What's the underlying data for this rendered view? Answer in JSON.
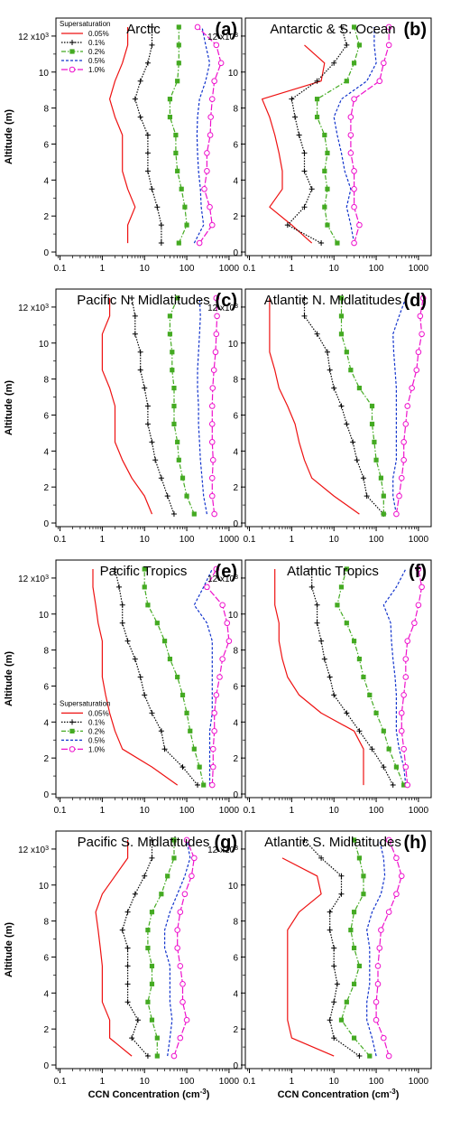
{
  "chart_data": {
    "type": "line",
    "x_axis": {
      "label": "CCN Concentration (cm",
      "label_sup": "-3",
      "label_end": ")",
      "scale": "log",
      "range": [
        0.08,
        2000
      ],
      "ticks": [
        "0.1",
        "1",
        "10",
        "100",
        "1000"
      ]
    },
    "y_axis": {
      "label": "Altitude (m)",
      "range": [
        -200,
        13000
      ],
      "ticks": [
        "0",
        "2",
        "4",
        "6",
        "8",
        "10",
        "12 x10"
      ],
      "top_tick_sup": "3"
    },
    "legend": {
      "title": "Supersaturation",
      "entries": [
        "0.05%",
        "0.1%",
        "0.2%",
        "0.5%",
        "1.0%"
      ],
      "shown_in_panels": [
        "a",
        "e"
      ],
      "placement": "top-left"
    },
    "series_style": [
      {
        "name": "0.05%",
        "color": "#ee1111",
        "dash": "solid",
        "marker": "none"
      },
      {
        "name": "0.1%",
        "color": "#000000",
        "dash": "dotted",
        "marker": "plus"
      },
      {
        "name": "0.2%",
        "color": "#44aa22",
        "dash": "dashdot",
        "marker": "square"
      },
      {
        "name": "0.5%",
        "color": "#1133cc",
        "dash": "dashed",
        "marker": "none"
      },
      {
        "name": "1.0%",
        "color": "#ee11cc",
        "dash": "longdash",
        "marker": "circle"
      }
    ],
    "altitudes": [
      500,
      1500,
      2500,
      3500,
      4500,
      5500,
      6500,
      7500,
      8500,
      9500,
      10500,
      11500,
      12500
    ],
    "panels": [
      {
        "id": "a",
        "title": "Arctic",
        "letter": "(a)",
        "series": [
          [
            4,
            4,
            6,
            4,
            3,
            3,
            3,
            2,
            1.5,
            2,
            3,
            4,
            4
          ],
          [
            25,
            25,
            20,
            15,
            12,
            12,
            12,
            8,
            6,
            8,
            12,
            15,
            15
          ],
          [
            65,
            100,
            90,
            75,
            60,
            55,
            55,
            40,
            40,
            60,
            65,
            65,
            65
          ],
          [
            150,
            250,
            220,
            210,
            190,
            180,
            175,
            180,
            200,
            280,
            350,
            280,
            230
          ],
          [
            200,
            400,
            350,
            260,
            300,
            300,
            360,
            370,
            400,
            450,
            650,
            500,
            180
          ]
        ]
      },
      {
        "id": "b",
        "title": "Antarctic & S. Ocean",
        "letter": "(b)",
        "series": [
          [
            3,
            1,
            0.3,
            0.6,
            0.6,
            0.5,
            0.4,
            0.3,
            0.2,
            5,
            6,
            2,
            null
          ],
          [
            5,
            0.8,
            2,
            3,
            2,
            2,
            1.5,
            1.2,
            1,
            4,
            10,
            20,
            15
          ],
          [
            12,
            7,
            6,
            7,
            6,
            7,
            6,
            4,
            4,
            20,
            30,
            40,
            30
          ],
          [
            30,
            25,
            20,
            25,
            18,
            15,
            12,
            10,
            15,
            60,
            100,
            90,
            90
          ],
          [
            30,
            40,
            30,
            30,
            30,
            25,
            25,
            25,
            30,
            120,
            150,
            200,
            200
          ]
        ]
      },
      {
        "id": "c",
        "title": "Pacific N. Midlatitudes",
        "letter": "(c)",
        "series": [
          [
            15,
            10,
            5,
            3,
            2,
            2,
            2,
            1.5,
            1,
            1,
            1,
            1.5,
            1.5
          ],
          [
            50,
            35,
            25,
            18,
            15,
            12,
            12,
            10,
            8,
            8,
            6,
            6,
            5
          ],
          [
            150,
            100,
            80,
            65,
            60,
            50,
            50,
            50,
            45,
            45,
            40,
            40,
            60
          ],
          [
            300,
            250,
            230,
            210,
            200,
            190,
            190,
            180,
            180,
            190,
            200,
            210,
            200
          ],
          [
            450,
            400,
            400,
            420,
            400,
            400,
            400,
            410,
            440,
            480,
            500,
            520,
            500
          ]
        ]
      },
      {
        "id": "d",
        "title": "Atlantic N. Midlatitudes",
        "letter": "(d)",
        "series": [
          [
            40,
            10,
            3,
            2,
            1.5,
            1.2,
            0.8,
            0.5,
            0.4,
            0.3,
            0.3,
            0.3,
            0.3
          ],
          [
            150,
            60,
            50,
            35,
            28,
            20,
            15,
            10,
            8,
            7,
            4,
            2,
            2
          ],
          [
            150,
            150,
            130,
            100,
            90,
            80,
            80,
            40,
            25,
            20,
            15,
            15,
            15
          ],
          [
            300,
            250,
            250,
            300,
            300,
            300,
            300,
            300,
            280,
            260,
            250,
            350,
            500
          ],
          [
            300,
            350,
            400,
            450,
            450,
            500,
            550,
            700,
            900,
            1000,
            1200,
            1100,
            1300
          ]
        ]
      },
      {
        "id": "e",
        "title": "Pacific Tropics",
        "letter": "(e)",
        "series": [
          [
            60,
            15,
            3,
            2,
            1.5,
            1.2,
            1,
            1,
            1,
            0.8,
            0.7,
            0.6,
            0.6
          ],
          [
            180,
            80,
            30,
            25,
            15,
            10,
            8,
            6,
            4,
            3,
            3,
            2.5,
            2
          ],
          [
            250,
            200,
            150,
            120,
            100,
            80,
            60,
            40,
            30,
            20,
            12,
            10,
            10
          ],
          [
            350,
            350,
            350,
            350,
            400,
            400,
            400,
            400,
            400,
            300,
            150,
            250,
            400
          ],
          [
            400,
            420,
            420,
            450,
            450,
            500,
            600,
            700,
            1000,
            900,
            700,
            300,
            500
          ]
        ]
      },
      {
        "id": "f",
        "title": "Atlantic Tropics",
        "letter": "(f)",
        "series": [
          [
            50,
            50,
            50,
            30,
            5,
            1.5,
            0.8,
            0.6,
            0.5,
            0.5,
            0.4,
            0.4,
            0.4
          ],
          [
            250,
            150,
            80,
            40,
            20,
            10,
            8,
            6,
            5,
            4,
            4,
            3,
            3
          ],
          [
            450,
            300,
            200,
            150,
            100,
            70,
            50,
            40,
            30,
            20,
            12,
            15,
            20
          ],
          [
            500,
            450,
            350,
            300,
            300,
            300,
            280,
            250,
            230,
            220,
            150,
            300,
            500
          ],
          [
            550,
            500,
            450,
            400,
            400,
            450,
            500,
            500,
            550,
            800,
            1000,
            1200,
            1000
          ]
        ]
      },
      {
        "id": "g",
        "title": "Pacific S. Midlatitudes",
        "letter": "(g)",
        "series": [
          [
            5,
            1.5,
            1.5,
            1,
            1,
            1,
            0.9,
            0.8,
            0.7,
            1,
            2,
            4,
            4
          ],
          [
            12,
            5,
            7,
            4,
            4,
            4,
            4,
            3,
            4,
            6,
            10,
            15,
            15
          ],
          [
            20,
            20,
            15,
            12,
            15,
            15,
            12,
            12,
            15,
            25,
            35,
            50,
            50
          ],
          [
            35,
            40,
            45,
            40,
            40,
            40,
            30,
            30,
            40,
            60,
            90,
            120,
            100
          ],
          [
            50,
            70,
            100,
            80,
            80,
            70,
            60,
            60,
            70,
            90,
            130,
            150,
            100
          ]
        ]
      },
      {
        "id": "h",
        "title": "Atlantic S. Midlatitudes",
        "letter": "(h)",
        "series": [
          [
            10,
            1,
            0.8,
            0.8,
            0.8,
            0.8,
            0.8,
            0.8,
            1.5,
            5,
            4,
            0.6,
            null
          ],
          [
            40,
            10,
            8,
            10,
            12,
            10,
            10,
            8,
            8,
            15,
            15,
            5,
            2
          ],
          [
            70,
            30,
            15,
            20,
            30,
            40,
            30,
            25,
            30,
            50,
            50,
            40,
            30
          ],
          [
            100,
            80,
            60,
            60,
            70,
            70,
            70,
            60,
            80,
            130,
            160,
            150,
            120
          ],
          [
            200,
            150,
            100,
            100,
            110,
            110,
            120,
            130,
            200,
            300,
            400,
            300,
            200
          ]
        ]
      }
    ]
  }
}
